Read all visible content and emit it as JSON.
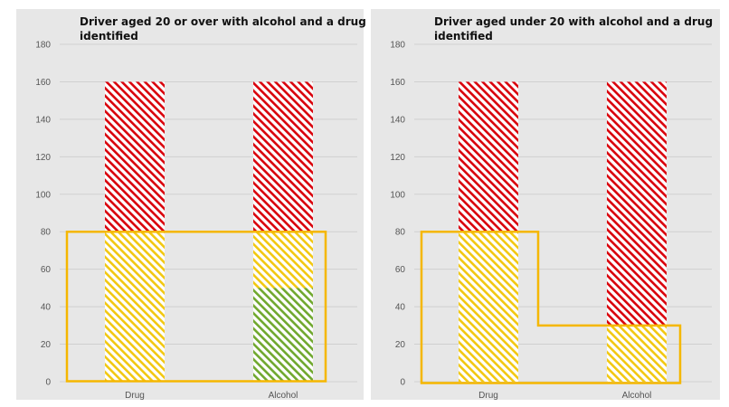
{
  "chart_data": [
    {
      "type": "bar",
      "title": "Driver aged 20 or over with alcohol and a drug identified",
      "title_lines": [
        "Driver aged 20 or over with alcohol and a drug",
        "identified"
      ],
      "xlabel": "",
      "ylabel": "",
      "ylim": [
        0,
        180
      ],
      "yticks": [
        0,
        20,
        40,
        60,
        80,
        100,
        120,
        140,
        160,
        180
      ],
      "grid": true,
      "stacked": true,
      "categories": [
        "Drug",
        "Alcohol"
      ],
      "bars": [
        {
          "category": "Drug",
          "segments": [
            {
              "band": "yellow",
              "from": 0,
              "to": 80
            },
            {
              "band": "red",
              "from": 80,
              "to": 160
            }
          ]
        },
        {
          "category": "Alcohol",
          "segments": [
            {
              "band": "green",
              "from": 0,
              "to": 50
            },
            {
              "band": "yellow",
              "from": 50,
              "to": 80
            },
            {
              "band": "red",
              "from": 80,
              "to": 160
            }
          ]
        }
      ],
      "limit_outline": [
        {
          "category": "Drug",
          "value": 80
        },
        {
          "category": "Alcohol",
          "value": 80
        }
      ]
    },
    {
      "type": "bar",
      "title": "Driver aged under 20 with alcohol and a drug identified",
      "title_lines": [
        "Driver aged under 20 with alcohol and a drug",
        "identified"
      ],
      "xlabel": "",
      "ylabel": "",
      "ylim": [
        0,
        180
      ],
      "yticks": [
        0,
        20,
        40,
        60,
        80,
        100,
        120,
        140,
        160,
        180
      ],
      "grid": true,
      "stacked": true,
      "categories": [
        "Drug",
        "Alcohol"
      ],
      "bars": [
        {
          "category": "Drug",
          "segments": [
            {
              "band": "yellow",
              "from": 0,
              "to": 80
            },
            {
              "band": "red",
              "from": 80,
              "to": 160
            }
          ]
        },
        {
          "category": "Alcohol",
          "segments": [
            {
              "band": "yellow",
              "from": 0,
              "to": 30
            },
            {
              "band": "red",
              "from": 30,
              "to": 160
            }
          ]
        }
      ],
      "limit_outline": [
        {
          "category": "Drug",
          "value": 80
        },
        {
          "category": "Alcohol",
          "value": 30
        }
      ]
    }
  ],
  "colors": {
    "background": "#e7e7e7",
    "red": "#d9000b",
    "yellow": "#f2c811",
    "green": "#70a82e",
    "outline": "#f5b700"
  }
}
